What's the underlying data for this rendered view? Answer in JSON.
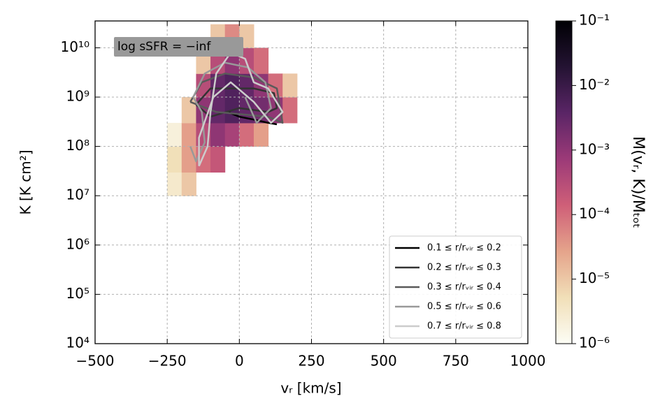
{
  "chart_data": {
    "type": "heatmap",
    "annotation": "log sSFR = −inf",
    "x_label": "vᵣ [km/s]",
    "y_label": "K [K cm²]",
    "colorbar_label": "M(vᵣ, K)/Mₜₒₜ",
    "xlim": [
      -500,
      1000
    ],
    "xticks": [
      {
        "value": -500,
        "label": "−500"
      },
      {
        "value": -250,
        "label": "−250"
      },
      0,
      250,
      500,
      750,
      1000
    ],
    "ylim": [
      10000.0,
      35000000000.0
    ],
    "yscale": "log",
    "yticks": [
      {
        "value": 10000.0,
        "label": "10⁴"
      },
      {
        "value": 100000.0,
        "label": "10⁵"
      },
      {
        "value": 1000000.0,
        "label": "10⁶"
      },
      {
        "value": 10000000.0,
        "label": "10⁷"
      },
      {
        "value": 100000000.0,
        "label": "10⁸"
      },
      {
        "value": 1000000000.0,
        "label": "10⁹"
      },
      {
        "value": 10000000000.0,
        "label": "10¹⁰"
      }
    ],
    "grid": true,
    "clim": [
      1e-06,
      0.1
    ],
    "cticks": [
      {
        "value": 1e-06,
        "label": "10⁻⁶"
      },
      {
        "value": 1e-05,
        "label": "10⁻⁵"
      },
      {
        "value": 0.0001,
        "label": "10⁻⁴"
      },
      {
        "value": 0.001,
        "label": "10⁻³"
      },
      {
        "value": 0.01,
        "label": "10⁻²"
      },
      {
        "value": 0.1,
        "label": "10⁻¹"
      }
    ],
    "colormap": [
      "#fcfdf5",
      "#f1dfb8",
      "#e5a48b",
      "#cf5f78",
      "#9c3a78",
      "#5a2566",
      "#241333",
      "#000004"
    ],
    "heatmap": {
      "x_edges": [
        -250,
        -200,
        -150,
        -100,
        -50,
        0,
        50,
        100,
        150,
        200
      ],
      "y_edges": [
        10000000.0,
        30000000.0,
        100000000.0,
        300000000.0,
        1000000000.0,
        3000000000.0,
        10000000000.0,
        30000000000.0
      ],
      "values": [
        [
          3e-06,
          1e-05,
          null,
          null,
          null,
          null,
          null,
          null,
          null
        ],
        [
          5e-06,
          3e-05,
          0.0001,
          0.0002,
          null,
          null,
          null,
          null,
          null
        ],
        [
          2e-06,
          3e-05,
          0.0003,
          0.001,
          0.0005,
          0.0001,
          3e-05,
          null,
          null
        ],
        [
          null,
          1e-05,
          0.001,
          0.003,
          0.005,
          0.003,
          0.002,
          0.001,
          0.0001
        ],
        [
          null,
          null,
          0.0003,
          0.003,
          0.005,
          0.003,
          0.001,
          0.0001,
          1e-05
        ],
        [
          null,
          null,
          1e-05,
          0.0003,
          0.001,
          0.0003,
          0.0001,
          null,
          null
        ],
        [
          null,
          null,
          null,
          1e-05,
          5e-05,
          1e-05,
          null,
          null,
          null
        ]
      ]
    },
    "legend": "lower right",
    "series": [
      {
        "name": "0.1 ≤ r/rᵥᵢᵣ ≤ 0.2",
        "color": "#000000",
        "x": [
          -40,
          0,
          50,
          100,
          130
        ],
        "y": [
          500000000.0,
          400000000.0,
          350000000.0,
          300000000.0,
          280000000.0
        ]
      },
      {
        "name": "0.2 ≤ r/rᵥᵢᵣ ≤ 0.3",
        "color": "#333333",
        "x": [
          -150,
          -100,
          -30,
          50,
          120,
          130,
          100,
          0,
          -100,
          -150
        ],
        "y": [
          700000000.0,
          1500000000.0,
          1500000000.0,
          1500000000.0,
          1200000000.0,
          600000000.0,
          500000000.0,
          600000000.0,
          400000000.0,
          700000000.0
        ]
      },
      {
        "name": "0.3 ≤ r/rᵥᵢᵣ ≤ 0.4",
        "color": "#5a5a5a",
        "x": [
          -170,
          -130,
          -50,
          50,
          130,
          150,
          100,
          -80,
          -170
        ],
        "y": [
          800000000.0,
          2000000000.0,
          3000000000.0,
          2500000000.0,
          1500000000.0,
          300000000.0,
          400000000.0,
          500000000.0,
          800000000.0
        ]
      },
      {
        "name": "0.5 ≤ r/rᵥᵢᵣ ≤ 0.6",
        "color": "#999999",
        "x": [
          -170,
          -150,
          -120,
          -130,
          -160,
          -120,
          -50,
          30,
          90,
          110,
          60,
          20
        ],
        "y": [
          100000000.0,
          50000000.0,
          120000000.0,
          500000000.0,
          1000000000.0,
          3000000000.0,
          5000000000.0,
          4000000000.0,
          2000000000.0,
          600000000.0,
          300000000.0,
          1000000000.0
        ]
      },
      {
        "name": "0.7 ≤ r/rᵥᵢᵣ ≤ 0.8",
        "color": "#cccccc",
        "x": [
          -140,
          -110,
          -100,
          -80,
          -30,
          20,
          50,
          100,
          150,
          110,
          50,
          -30,
          -90,
          -140,
          -140
        ],
        "y": [
          40000000.0,
          100000000.0,
          500000000.0,
          3000000000.0,
          8000000000.0,
          6000000000.0,
          2000000000.0,
          1500000000.0,
          500000000.0,
          300000000.0,
          800000000.0,
          2000000000.0,
          1000000000.0,
          150000000.0,
          40000000.0
        ]
      }
    ]
  }
}
